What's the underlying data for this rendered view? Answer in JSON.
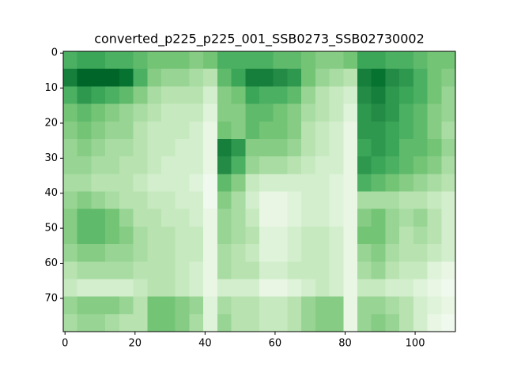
{
  "chart_data": {
    "type": "heatmap",
    "title": "converted_p225_p225_001_SSB0273_SSB02730002",
    "cmap": "Greens",
    "xlim": [
      -0.5,
      111.5
    ],
    "ylim": [
      79.5,
      -0.5
    ],
    "xticks": [
      0,
      20,
      40,
      60,
      80,
      100
    ],
    "yticks": [
      0,
      10,
      20,
      30,
      40,
      50,
      60,
      70
    ],
    "values": [
      [
        0.6,
        0.65,
        0.65,
        0.6,
        0.6,
        0.55,
        0.5,
        0.5,
        0.5,
        0.45,
        0.5,
        0.6,
        0.6,
        0.6,
        0.6,
        0.55,
        0.55,
        0.5,
        0.45,
        0.45,
        0.5,
        0.65,
        0.65,
        0.6,
        0.6,
        0.55,
        0.5,
        0.5
      ],
      [
        0.8,
        0.9,
        0.9,
        0.9,
        0.85,
        0.6,
        0.45,
        0.4,
        0.4,
        0.35,
        0.3,
        0.55,
        0.65,
        0.8,
        0.8,
        0.75,
        0.7,
        0.5,
        0.4,
        0.35,
        0.3,
        0.8,
        0.85,
        0.75,
        0.7,
        0.6,
        0.5,
        0.45
      ],
      [
        0.6,
        0.7,
        0.65,
        0.6,
        0.55,
        0.45,
        0.35,
        0.3,
        0.3,
        0.3,
        0.2,
        0.45,
        0.5,
        0.65,
        0.6,
        0.6,
        0.55,
        0.4,
        0.3,
        0.25,
        0.2,
        0.75,
        0.8,
        0.7,
        0.65,
        0.6,
        0.5,
        0.4
      ],
      [
        0.5,
        0.55,
        0.5,
        0.45,
        0.4,
        0.35,
        0.3,
        0.25,
        0.25,
        0.25,
        0.15,
        0.45,
        0.45,
        0.55,
        0.55,
        0.5,
        0.45,
        0.35,
        0.3,
        0.25,
        0.15,
        0.7,
        0.75,
        0.7,
        0.6,
        0.55,
        0.45,
        0.4
      ],
      [
        0.45,
        0.5,
        0.45,
        0.4,
        0.4,
        0.3,
        0.25,
        0.25,
        0.25,
        0.2,
        0.1,
        0.5,
        0.45,
        0.55,
        0.5,
        0.5,
        0.45,
        0.3,
        0.25,
        0.2,
        0.1,
        0.7,
        0.7,
        0.65,
        0.6,
        0.55,
        0.45,
        0.35
      ],
      [
        0.4,
        0.45,
        0.4,
        0.35,
        0.35,
        0.3,
        0.25,
        0.25,
        0.2,
        0.2,
        0.1,
        0.8,
        0.7,
        0.45,
        0.45,
        0.45,
        0.4,
        0.3,
        0.25,
        0.2,
        0.1,
        0.65,
        0.7,
        0.65,
        0.55,
        0.55,
        0.5,
        0.4
      ],
      [
        0.4,
        0.4,
        0.35,
        0.35,
        0.3,
        0.3,
        0.25,
        0.2,
        0.2,
        0.2,
        0.1,
        0.75,
        0.6,
        0.4,
        0.35,
        0.35,
        0.3,
        0.25,
        0.2,
        0.2,
        0.1,
        0.7,
        0.65,
        0.6,
        0.55,
        0.5,
        0.45,
        0.35
      ],
      [
        0.35,
        0.35,
        0.3,
        0.3,
        0.3,
        0.25,
        0.2,
        0.2,
        0.2,
        0.15,
        0.05,
        0.55,
        0.45,
        0.25,
        0.2,
        0.2,
        0.2,
        0.2,
        0.2,
        0.15,
        0.1,
        0.6,
        0.55,
        0.5,
        0.45,
        0.4,
        0.35,
        0.3
      ],
      [
        0.4,
        0.45,
        0.4,
        0.35,
        0.3,
        0.3,
        0.25,
        0.25,
        0.2,
        0.2,
        0.05,
        0.45,
        0.35,
        0.2,
        0.1,
        0.1,
        0.15,
        0.2,
        0.2,
        0.15,
        0.1,
        0.35,
        0.35,
        0.35,
        0.3,
        0.3,
        0.25,
        0.2
      ],
      [
        0.45,
        0.55,
        0.55,
        0.5,
        0.4,
        0.3,
        0.3,
        0.25,
        0.25,
        0.2,
        0.1,
        0.4,
        0.35,
        0.25,
        0.1,
        0.1,
        0.15,
        0.2,
        0.2,
        0.15,
        0.1,
        0.45,
        0.5,
        0.4,
        0.35,
        0.4,
        0.3,
        0.2
      ],
      [
        0.45,
        0.55,
        0.55,
        0.5,
        0.45,
        0.35,
        0.3,
        0.3,
        0.25,
        0.25,
        0.1,
        0.4,
        0.35,
        0.3,
        0.15,
        0.15,
        0.2,
        0.25,
        0.25,
        0.2,
        0.1,
        0.5,
        0.5,
        0.4,
        0.3,
        0.35,
        0.3,
        0.2
      ],
      [
        0.4,
        0.45,
        0.45,
        0.4,
        0.4,
        0.35,
        0.3,
        0.3,
        0.25,
        0.25,
        0.1,
        0.35,
        0.3,
        0.25,
        0.15,
        0.15,
        0.2,
        0.25,
        0.25,
        0.2,
        0.1,
        0.4,
        0.45,
        0.35,
        0.3,
        0.3,
        0.25,
        0.2
      ],
      [
        0.3,
        0.35,
        0.35,
        0.35,
        0.35,
        0.3,
        0.3,
        0.3,
        0.25,
        0.2,
        0.1,
        0.35,
        0.3,
        0.3,
        0.2,
        0.2,
        0.25,
        0.25,
        0.25,
        0.2,
        0.1,
        0.35,
        0.4,
        0.3,
        0.25,
        0.25,
        0.15,
        0.1
      ],
      [
        0.25,
        0.2,
        0.2,
        0.2,
        0.2,
        0.25,
        0.3,
        0.3,
        0.25,
        0.2,
        0.1,
        0.2,
        0.2,
        0.2,
        0.1,
        0.1,
        0.15,
        0.2,
        0.25,
        0.2,
        0.1,
        0.25,
        0.25,
        0.2,
        0.2,
        0.15,
        0.1,
        0.05
      ],
      [
        0.4,
        0.45,
        0.45,
        0.45,
        0.4,
        0.3,
        0.5,
        0.5,
        0.45,
        0.4,
        0.15,
        0.35,
        0.3,
        0.3,
        0.25,
        0.25,
        0.3,
        0.4,
        0.45,
        0.45,
        0.1,
        0.4,
        0.4,
        0.35,
        0.3,
        0.2,
        0.15,
        0.1
      ],
      [
        0.35,
        0.4,
        0.4,
        0.35,
        0.3,
        0.3,
        0.5,
        0.5,
        0.45,
        0.35,
        0.15,
        0.4,
        0.3,
        0.3,
        0.25,
        0.25,
        0.3,
        0.4,
        0.45,
        0.45,
        0.1,
        0.4,
        0.45,
        0.4,
        0.3,
        0.2,
        0.1,
        0.05
      ]
    ]
  }
}
